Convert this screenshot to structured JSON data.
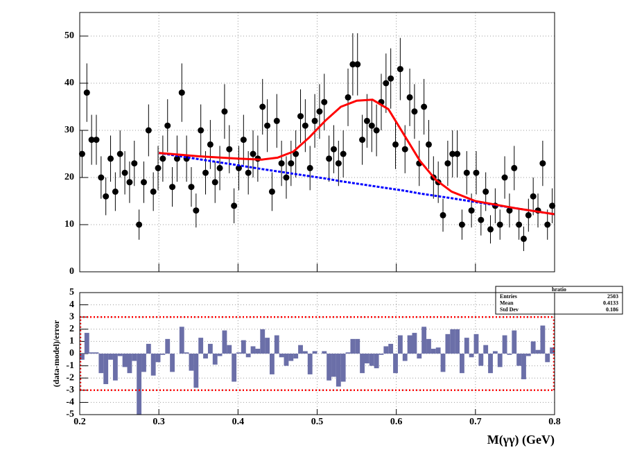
{
  "chart_data": [
    {
      "type": "scatter",
      "x": [
        0.203,
        0.209,
        0.215,
        0.221,
        0.227,
        0.233,
        0.239,
        0.245,
        0.251,
        0.257,
        0.263,
        0.269,
        0.275,
        0.281,
        0.287,
        0.293,
        0.299,
        0.305,
        0.311,
        0.317,
        0.323,
        0.329,
        0.335,
        0.341,
        0.347,
        0.353,
        0.359,
        0.365,
        0.371,
        0.377,
        0.383,
        0.389,
        0.395,
        0.401,
        0.407,
        0.413,
        0.419,
        0.425,
        0.431,
        0.437,
        0.443,
        0.449,
        0.455,
        0.461,
        0.467,
        0.473,
        0.479,
        0.485,
        0.491,
        0.497,
        0.503,
        0.509,
        0.515,
        0.521,
        0.527,
        0.533,
        0.539,
        0.545,
        0.551,
        0.557,
        0.563,
        0.569,
        0.575,
        0.581,
        0.587,
        0.593,
        0.599,
        0.605,
        0.611,
        0.617,
        0.623,
        0.629,
        0.635,
        0.641,
        0.647,
        0.653,
        0.659,
        0.665,
        0.671,
        0.677,
        0.683,
        0.689,
        0.695,
        0.701,
        0.707,
        0.713,
        0.719,
        0.725,
        0.731,
        0.737,
        0.743,
        0.749,
        0.755,
        0.761,
        0.767,
        0.773,
        0.779,
        0.785,
        0.791,
        0.797
      ],
      "values": [
        25,
        38,
        28,
        28,
        20,
        16,
        24,
        17,
        25,
        21,
        19,
        23,
        10,
        19,
        30,
        17,
        22,
        24,
        31,
        18,
        24,
        38,
        24,
        18,
        13,
        30,
        21,
        27,
        19,
        22,
        34,
        26,
        14,
        22,
        28,
        21,
        25,
        24,
        35,
        31,
        17,
        32,
        23,
        20,
        23,
        25,
        33,
        31,
        22,
        32,
        34,
        36,
        24,
        26,
        23,
        25,
        37,
        44,
        44,
        28,
        32,
        31,
        30,
        36,
        40,
        41,
        27,
        43,
        26,
        37,
        34,
        23,
        35,
        27,
        20,
        19,
        12,
        23,
        25,
        25,
        10,
        21,
        13,
        21,
        11,
        17,
        9,
        14,
        10,
        20,
        13,
        22,
        10,
        7,
        12,
        16,
        13,
        23,
        10,
        14
      ],
      "errors": [
        5,
        6.2,
        5.3,
        5.3,
        4.5,
        4,
        4.9,
        4.1,
        5,
        4.6,
        4.4,
        4.8,
        3.2,
        4.4,
        5.5,
        4.1,
        4.7,
        4.9,
        5.6,
        4.2,
        4.9,
        6.2,
        4.9,
        4.2,
        3.6,
        5.5,
        4.6,
        5.2,
        4.4,
        4.7,
        5.8,
        5.1,
        3.7,
        4.7,
        5.3,
        4.6,
        5,
        4.9,
        5.9,
        5.6,
        4.1,
        5.7,
        4.8,
        4.5,
        4.8,
        5,
        5.7,
        5.6,
        4.7,
        5.7,
        5.8,
        6,
        4.9,
        5.1,
        4.8,
        5,
        6.1,
        6.6,
        6.6,
        5.3,
        5.7,
        5.6,
        5.5,
        6,
        6.3,
        6.4,
        5.2,
        6.6,
        5.1,
        6.1,
        5.8,
        4.8,
        5.9,
        5.2,
        4.5,
        4.4,
        3.5,
        4.8,
        5,
        5,
        3.2,
        4.6,
        3.6,
        4.6,
        3.3,
        4.1,
        3,
        3.7,
        3.2,
        4.5,
        3.6,
        4.7,
        3.2,
        2.6,
        3.5,
        4,
        3.6,
        4.8,
        3.2,
        3.7
      ],
      "color": "#000000",
      "fits": [
        {
          "x": [
            0.3,
            0.35,
            0.4,
            0.43,
            0.45,
            0.47,
            0.49,
            0.51,
            0.53,
            0.55,
            0.57,
            0.59,
            0.61,
            0.63,
            0.65,
            0.67,
            0.7,
            0.75,
            0.8
          ],
          "values": [
            25.2,
            23.9,
            22.6,
            21.8,
            21.3,
            20.8,
            20.3,
            19.8,
            19.2,
            18.7,
            18.2,
            17.7,
            17.2,
            16.6,
            16.1,
            15.6,
            14.8,
            13.5,
            12.2
          ],
          "color": "#0000ff",
          "dash": true
        },
        {
          "x": [
            0.3,
            0.35,
            0.4,
            0.43,
            0.45,
            0.47,
            0.49,
            0.51,
            0.53,
            0.55,
            0.57,
            0.59,
            0.61,
            0.63,
            0.65,
            0.67,
            0.7,
            0.75,
            0.8
          ],
          "values": [
            25.2,
            24.5,
            24.0,
            23.8,
            24.2,
            25.5,
            28.5,
            32,
            35,
            36.3,
            36.5,
            34.5,
            29,
            23.5,
            19.5,
            17,
            15,
            13.5,
            12.2
          ],
          "color": "#ff0000",
          "dash": false
        }
      ],
      "xlim": [
        0.2,
        0.8
      ],
      "xticks": [
        0.2,
        0.3,
        0.4,
        0.5,
        0.6,
        0.7,
        0.8
      ],
      "ylim": [
        0,
        55
      ],
      "yticks": [
        0,
        10,
        20,
        30,
        40,
        50
      ],
      "grid": true
    },
    {
      "type": "bar",
      "x": [
        0.203,
        0.209,
        0.215,
        0.221,
        0.227,
        0.233,
        0.239,
        0.245,
        0.251,
        0.257,
        0.263,
        0.269,
        0.275,
        0.281,
        0.287,
        0.293,
        0.299,
        0.305,
        0.311,
        0.317,
        0.323,
        0.329,
        0.335,
        0.341,
        0.347,
        0.353,
        0.359,
        0.365,
        0.371,
        0.377,
        0.383,
        0.389,
        0.395,
        0.401,
        0.407,
        0.413,
        0.419,
        0.425,
        0.431,
        0.437,
        0.443,
        0.449,
        0.455,
        0.461,
        0.467,
        0.473,
        0.479,
        0.485,
        0.491,
        0.497,
        0.503,
        0.509,
        0.515,
        0.521,
        0.527,
        0.533,
        0.539,
        0.545,
        0.551,
        0.557,
        0.563,
        0.569,
        0.575,
        0.581,
        0.587,
        0.593,
        0.599,
        0.605,
        0.611,
        0.617,
        0.623,
        0.629,
        0.635,
        0.641,
        0.647,
        0.653,
        0.659,
        0.665,
        0.671,
        0.677,
        0.683,
        0.689,
        0.695,
        0.701,
        0.707,
        0.713,
        0.719,
        0.725,
        0.731,
        0.737,
        0.743,
        0.749,
        0.755,
        0.761,
        0.767,
        0.773,
        0.779,
        0.785,
        0.791,
        0.797
      ],
      "values": [
        -0.5,
        1.7,
        0.1,
        0.1,
        -1.6,
        -2.5,
        -0.5,
        -2.2,
        -0.2,
        -1.1,
        -1.6,
        -0.6,
        -5.0,
        -1.5,
        0.8,
        -1.8,
        -0.7,
        -0.1,
        1.2,
        -1.5,
        0,
        2.2,
        0.1,
        -1.4,
        -2.8,
        1.3,
        -0.4,
        0.8,
        -0.9,
        -0.2,
        1.9,
        0.7,
        -2.3,
        0.1,
        1.1,
        -0.3,
        0.6,
        0.4,
        2.0,
        1.3,
        -1.7,
        1.5,
        -0.3,
        -1.0,
        -0.6,
        -0.4,
        0.7,
        0.2,
        -1.7,
        0.2,
        0,
        0.2,
        -2.2,
        -1.9,
        -2.7,
        -2.3,
        0.1,
        1.2,
        1.2,
        -1.6,
        -0.8,
        -1.0,
        -1.2,
        -0.1,
        0.6,
        0.8,
        -1.6,
        1.5,
        -0.6,
        1.5,
        1.7,
        -0.4,
        2.2,
        1.2,
        0.4,
        0.5,
        -1.5,
        1.6,
        2.0,
        2.0,
        -1.6,
        1.3,
        -0.3,
        1.6,
        -1.0,
        0.7,
        -1.6,
        0.2,
        -1.1,
        1.5,
        -0.1,
        1.9,
        -1.0,
        -2.1,
        -0.2,
        1.0,
        0.3,
        2.3,
        -0.7,
        0.5
      ],
      "color": "#6b6fa8",
      "bands": [
        -3,
        3
      ],
      "band_color": "#ff0000",
      "xlim": [
        0.2,
        0.8
      ],
      "xticks": [
        0.2,
        0.3,
        0.4,
        0.5,
        0.6,
        0.7,
        0.8
      ],
      "ylim": [
        -5,
        5
      ],
      "yticks": [
        -5,
        -4,
        -3,
        -2,
        -1,
        0,
        1,
        2,
        3,
        4,
        5
      ],
      "grid": true,
      "xlabel": "M(γγ) (GeV)",
      "ylabel": "(data-model)/error",
      "stats": {
        "title": "hratio",
        "rows": [
          {
            "label": "Entries",
            "value": 2503
          },
          {
            "label": "Mean",
            "value": 0.4133
          },
          {
            "label": "Std Dev",
            "value": 0.186
          }
        ]
      }
    }
  ]
}
